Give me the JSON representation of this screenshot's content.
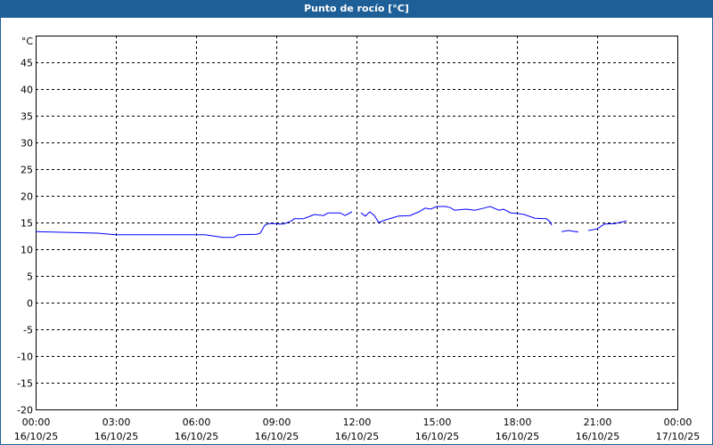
{
  "title": "Punto de rocío [°C]",
  "chart_data": {
    "type": "line",
    "title": "Punto de rocío [°C]",
    "ylabel": "°C",
    "ylim": [
      -20,
      50
    ],
    "yticks": [
      45,
      40,
      35,
      30,
      25,
      20,
      15,
      10,
      5,
      0,
      -5,
      -10,
      -15,
      -20
    ],
    "xlim_hours": [
      0,
      24
    ],
    "xticks": [
      {
        "time": "00:00",
        "date": "16/10/25"
      },
      {
        "time": "03:00",
        "date": "16/10/25"
      },
      {
        "time": "06:00",
        "date": "16/10/25"
      },
      {
        "time": "09:00",
        "date": "16/10/25"
      },
      {
        "time": "12:00",
        "date": "16/10/25"
      },
      {
        "time": "15:00",
        "date": "16/10/25"
      },
      {
        "time": "18:00",
        "date": "16/10/25"
      },
      {
        "time": "21:00",
        "date": "16/10/25"
      },
      {
        "time": "00:00",
        "date": "17/10/25"
      }
    ],
    "grid": true,
    "line_color": "#0000ff",
    "segments": [
      [
        [
          0,
          13.3
        ],
        [
          2.33,
          13.0
        ],
        [
          3.0,
          12.7
        ],
        [
          6.33,
          12.7
        ],
        [
          7.0,
          12.2
        ],
        [
          7.4,
          12.2
        ],
        [
          7.57,
          12.7
        ],
        [
          8.27,
          12.8
        ],
        [
          8.4,
          13.0
        ],
        [
          8.57,
          14.5
        ],
        [
          8.73,
          14.8
        ],
        [
          9.0,
          14.8
        ],
        [
          9.1,
          14.7
        ],
        [
          9.27,
          14.7
        ],
        [
          9.57,
          15.3
        ],
        [
          9.67,
          15.7
        ],
        [
          10.0,
          15.7
        ],
        [
          10.17,
          16.0
        ],
        [
          10.43,
          16.5
        ],
        [
          10.77,
          16.3
        ],
        [
          10.93,
          16.8
        ],
        [
          11.4,
          16.8
        ],
        [
          11.57,
          16.3
        ],
        [
          11.83,
          17.0
        ]
      ],
      [
        [
          12.17,
          16.8
        ],
        [
          12.33,
          16.2
        ],
        [
          12.5,
          17.0
        ],
        [
          12.67,
          16.3
        ],
        [
          12.83,
          15.0
        ],
        [
          13.1,
          15.5
        ],
        [
          13.57,
          16.2
        ],
        [
          14.0,
          16.3
        ],
        [
          14.33,
          17.0
        ],
        [
          14.57,
          17.7
        ],
        [
          14.77,
          17.5
        ],
        [
          15.0,
          18.0
        ],
        [
          15.33,
          18.0
        ],
        [
          15.5,
          17.8
        ],
        [
          15.67,
          17.3
        ],
        [
          16.1,
          17.5
        ],
        [
          16.43,
          17.3
        ],
        [
          16.77,
          17.7
        ],
        [
          17.0,
          18.0
        ],
        [
          17.33,
          17.3
        ],
        [
          17.5,
          17.5
        ],
        [
          17.77,
          16.8
        ],
        [
          18.0,
          16.7
        ],
        [
          18.27,
          16.5
        ],
        [
          18.67,
          15.8
        ],
        [
          19.1,
          15.7
        ],
        [
          19.23,
          15.2
        ],
        [
          19.3,
          14.5
        ]
      ],
      [
        [
          19.67,
          13.3
        ],
        [
          19.93,
          13.5
        ],
        [
          20.3,
          13.2
        ]
      ],
      [
        [
          20.67,
          13.5
        ],
        [
          21.0,
          13.8
        ],
        [
          21.27,
          14.7
        ],
        [
          21.67,
          14.8
        ],
        [
          22.1,
          15.3
        ]
      ]
    ]
  }
}
